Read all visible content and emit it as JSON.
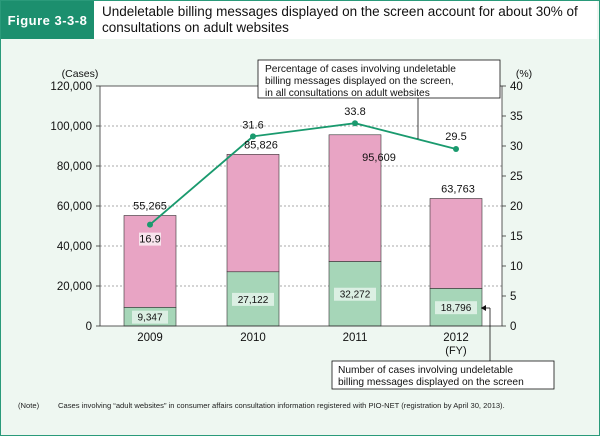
{
  "figure": {
    "label": "Figure 3-3-8",
    "title": "Undeletable billing messages displayed on the screen account for about 30% of consultations on adult websites"
  },
  "chart_data": {
    "type": "bar",
    "categories": [
      "2009",
      "2010",
      "2011",
      "2012"
    ],
    "category_suffix": "(FY)",
    "left_axis_unit": "(Cases)",
    "right_axis_unit": "(%)",
    "ylim": [
      0,
      120000
    ],
    "y_ticks": [
      0,
      20000,
      40000,
      60000,
      80000,
      100000,
      120000
    ],
    "y_tick_labels": [
      "0",
      "20,000",
      "40,000",
      "60,000",
      "80,000",
      "100,000",
      "120,000"
    ],
    "y2lim": [
      0,
      40
    ],
    "y2_ticks": [
      0,
      5,
      10,
      15,
      20,
      25,
      30,
      35,
      40
    ],
    "y2_tick_labels": [
      "0",
      "5",
      "10",
      "15",
      "20",
      "25",
      "30",
      "35",
      "40"
    ],
    "gridlines": "dashed",
    "series": [
      {
        "values": [
          9347,
          27122,
          32272,
          18796
        ],
        "labels": [
          "9,347",
          "27,122",
          "32,272",
          "18,796"
        ],
        "color": "#a6d6b8"
      },
      {
        "values": [
          45918,
          58704,
          63337,
          44967
        ],
        "color": "#e8a4c4"
      }
    ],
    "totals": [
      55265,
      85826,
      95609,
      63763
    ],
    "total_labels": [
      "55,265",
      "85,826",
      "95,609",
      "63,763"
    ],
    "line": {
      "values": [
        16.9,
        31.6,
        33.8,
        29.5
      ],
      "labels": [
        "16.9",
        "31.6",
        "33.8",
        "29.5"
      ],
      "color": "#1a9a6e"
    },
    "annotations": {
      "percentage": "Percentage of cases involving undeletable billing messages displayed on the screen, in all consultations on adult websites",
      "cases": "Number of cases involving undeletable billing messages displayed on the screen"
    }
  },
  "note": {
    "tag": "(Note)",
    "text": "Cases involving “adult websites” in consumer affairs consultation information registered with PIO-NET (registration by April 30, 2013)."
  }
}
